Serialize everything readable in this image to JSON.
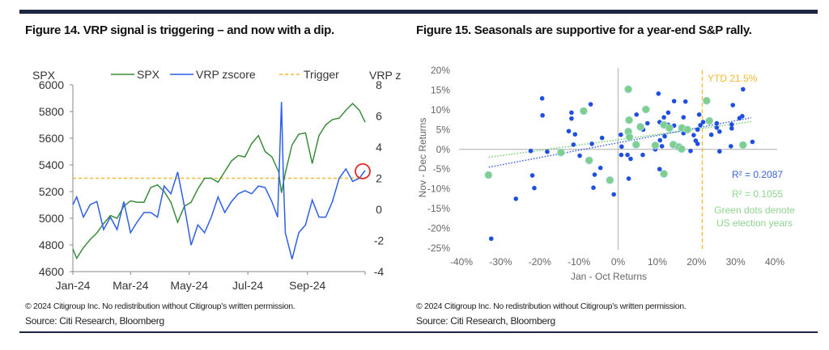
{
  "colors": {
    "navy": "#1c2541",
    "spx": "#3b8c3b",
    "vrp": "#2f5fe8",
    "trigger": "#f5b932",
    "circle": "#e8262a",
    "scatter_blue": "#1f4fe0",
    "scatter_green": "#7fcf8c",
    "green_text": "#8fd48f",
    "blue_text": "#3a62e0",
    "axis": "#bbbbbb"
  },
  "left": {
    "title": "Figure 14. VRP signal is triggering – and now with a dip.",
    "copyright": "© 2024 Citigroup Inc. No redistribution without Citigroup’s written permission.",
    "source": "Source: Citi Research, Bloomberg"
  },
  "right": {
    "title": "Figure 15. Seasonals are supportive for a year-end S&P rally.",
    "copyright": "© 2024 Citigroup Inc. No redistribution without Citigroup’s written permission.",
    "source": "Source: Citi Research, Bloomberg"
  },
  "chart_data": [
    {
      "type": "line",
      "ylabel": "SPX",
      "y2label": "VRP z",
      "ylim": [
        4600,
        6000
      ],
      "yticks": [
        4600,
        4800,
        5000,
        5200,
        5400,
        5600,
        5800,
        6000
      ],
      "y2lim": [
        -4,
        8
      ],
      "y2ticks": [
        -4,
        -2,
        0,
        2,
        4,
        6,
        8
      ],
      "xlim": [
        "2024-01-01",
        "2024-10-31"
      ],
      "xticks": [
        {
          "label": "Jan-24",
          "date": "2024-01-01"
        },
        {
          "label": "Mar-24",
          "date": "2024-03-01"
        },
        {
          "label": "May-24",
          "date": "2024-05-01"
        },
        {
          "label": "Jul-24",
          "date": "2024-07-01"
        },
        {
          "label": "Sep-24",
          "date": "2024-09-01"
        }
      ],
      "legend": "top",
      "series": [
        {
          "name": "SPX",
          "axis": "left",
          "style": "solid",
          "points": [
            [
              "2024-01-01",
              4770
            ],
            [
              "2024-01-05",
              4700
            ],
            [
              "2024-01-12",
              4780
            ],
            [
              "2024-01-19",
              4840
            ],
            [
              "2024-01-26",
              4890
            ],
            [
              "2024-02-02",
              4960
            ],
            [
              "2024-02-09",
              5020
            ],
            [
              "2024-02-16",
              5000
            ],
            [
              "2024-02-23",
              5090
            ],
            [
              "2024-03-01",
              5130
            ],
            [
              "2024-03-08",
              5120
            ],
            [
              "2024-03-15",
              5120
            ],
            [
              "2024-03-22",
              5230
            ],
            [
              "2024-03-29",
              5250
            ],
            [
              "2024-04-05",
              5200
            ],
            [
              "2024-04-12",
              5120
            ],
            [
              "2024-04-19",
              4970
            ],
            [
              "2024-04-26",
              5090
            ],
            [
              "2024-05-03",
              5120
            ],
            [
              "2024-05-10",
              5220
            ],
            [
              "2024-05-17",
              5300
            ],
            [
              "2024-05-24",
              5300
            ],
            [
              "2024-05-31",
              5270
            ],
            [
              "2024-06-07",
              5350
            ],
            [
              "2024-06-14",
              5430
            ],
            [
              "2024-06-21",
              5470
            ],
            [
              "2024-06-28",
              5460
            ],
            [
              "2024-07-05",
              5560
            ],
            [
              "2024-07-12",
              5620
            ],
            [
              "2024-07-19",
              5500
            ],
            [
              "2024-07-26",
              5460
            ],
            [
              "2024-08-02",
              5350
            ],
            [
              "2024-08-05",
              5190
            ],
            [
              "2024-08-09",
              5340
            ],
            [
              "2024-08-16",
              5550
            ],
            [
              "2024-08-23",
              5630
            ],
            [
              "2024-08-30",
              5640
            ],
            [
              "2024-09-06",
              5410
            ],
            [
              "2024-09-13",
              5620
            ],
            [
              "2024-09-20",
              5700
            ],
            [
              "2024-09-27",
              5740
            ],
            [
              "2024-10-04",
              5750
            ],
            [
              "2024-10-11",
              5810
            ],
            [
              "2024-10-18",
              5860
            ],
            [
              "2024-10-25",
              5810
            ],
            [
              "2024-10-31",
              5720
            ]
          ]
        },
        {
          "name": "VRP zscore",
          "axis": "right",
          "style": "solid",
          "points": [
            [
              "2024-01-01",
              0.3
            ],
            [
              "2024-01-05",
              0.8
            ],
            [
              "2024-01-12",
              -0.5
            ],
            [
              "2024-01-19",
              0.3
            ],
            [
              "2024-01-26",
              0.5
            ],
            [
              "2024-02-02",
              -1.3
            ],
            [
              "2024-02-09",
              -0.5
            ],
            [
              "2024-02-16",
              -1.3
            ],
            [
              "2024-02-23",
              0.5
            ],
            [
              "2024-03-01",
              -1.5
            ],
            [
              "2024-03-08",
              -0.8
            ],
            [
              "2024-03-15",
              -0.2
            ],
            [
              "2024-03-22",
              -0.2
            ],
            [
              "2024-03-29",
              -0.5
            ],
            [
              "2024-04-05",
              1.5
            ],
            [
              "2024-04-12",
              1.0
            ],
            [
              "2024-04-19",
              2.4
            ],
            [
              "2024-04-26",
              0.2
            ],
            [
              "2024-05-03",
              -2.3
            ],
            [
              "2024-05-10",
              -1.0
            ],
            [
              "2024-05-17",
              -1.5
            ],
            [
              "2024-05-24",
              -0.5
            ],
            [
              "2024-05-31",
              0.8
            ],
            [
              "2024-06-07",
              -0.2
            ],
            [
              "2024-06-14",
              0.5
            ],
            [
              "2024-06-21",
              1.0
            ],
            [
              "2024-06-28",
              1.2
            ],
            [
              "2024-07-05",
              1.0
            ],
            [
              "2024-07-12",
              1.5
            ],
            [
              "2024-07-19",
              1.4
            ],
            [
              "2024-07-26",
              0.5
            ],
            [
              "2024-08-01",
              -0.5
            ],
            [
              "2024-08-05",
              6.9
            ],
            [
              "2024-08-07",
              2.0
            ],
            [
              "2024-08-09",
              -1.5
            ],
            [
              "2024-08-16",
              -3.2
            ],
            [
              "2024-08-23",
              -1.5
            ],
            [
              "2024-08-30",
              -1.0
            ],
            [
              "2024-09-06",
              0.6
            ],
            [
              "2024-09-13",
              -0.5
            ],
            [
              "2024-09-20",
              -0.5
            ],
            [
              "2024-09-27",
              0.5
            ],
            [
              "2024-10-04",
              2.0
            ],
            [
              "2024-10-11",
              2.6
            ],
            [
              "2024-10-18",
              1.8
            ],
            [
              "2024-10-25",
              2.0
            ],
            [
              "2024-10-31",
              2.5
            ]
          ]
        },
        {
          "name": "Trigger",
          "axis": "right",
          "style": "dashed",
          "value": 2
        }
      ],
      "annotation": "circle at latest VRP zscore"
    },
    {
      "type": "scatter",
      "xlabel": "Jan - Oct Returns",
      "ylabel": "Nov - Dec Returns",
      "xlim": [
        -40,
        40
      ],
      "xticks": [
        -40,
        -30,
        -20,
        -10,
        0,
        10,
        20,
        30,
        40
      ],
      "ylim": [
        -25,
        20
      ],
      "yticks": [
        -25,
        -20,
        -15,
        -10,
        -5,
        0,
        5,
        10,
        15,
        20
      ],
      "unit": "%",
      "ytd_line": {
        "value": 21.5,
        "label": "YTD 21.5%"
      },
      "r2_blue": "R² = 0.2087",
      "r2_green": "R² = 0.1055",
      "note": [
        "Green dots denote",
        "US election years"
      ],
      "trend_blue": [
        [
          -33,
          -4.5
        ],
        [
          34,
          8
        ]
      ],
      "trend_green": [
        [
          -33,
          -2
        ],
        [
          34,
          7
        ]
      ],
      "series": [
        {
          "group": "all years",
          "color": "blue",
          "points": [
            [
              -32.4,
              -22.6
            ],
            [
              -19.4,
              12.9
            ],
            [
              -19.3,
              8.6
            ],
            [
              -11.9,
              9.3
            ],
            [
              -11.9,
              7.8
            ],
            [
              -7.0,
              11.4
            ],
            [
              -12.6,
              4.6
            ],
            [
              -11.0,
              3.8
            ],
            [
              -11.4,
              1.2
            ],
            [
              -22.3,
              -0.4
            ],
            [
              -18.1,
              -0.6
            ],
            [
              -21.9,
              -6.6
            ],
            [
              -21.4,
              -9.8
            ],
            [
              -26.1,
              -12.5
            ],
            [
              -9.8,
              -1.6
            ],
            [
              -6.7,
              1.4
            ],
            [
              -4.1,
              2.9
            ],
            [
              -4.5,
              -4.7
            ],
            [
              -6.0,
              -6.4
            ],
            [
              -6.3,
              -9.7
            ],
            [
              -1.1,
              -11.4
            ],
            [
              0.7,
              3.7
            ],
            [
              0.9,
              0.7
            ],
            [
              0.8,
              -1.4
            ],
            [
              2.4,
              -1.4
            ],
            [
              3.2,
              -2.4
            ],
            [
              2.7,
              -7.4
            ],
            [
              4.7,
              8.8
            ],
            [
              6.4,
              5.0
            ],
            [
              6.3,
              -1.4
            ],
            [
              7.5,
              6.6
            ],
            [
              4.6,
              0.9
            ],
            [
              9.5,
              0
            ],
            [
              10.3,
              14.1
            ],
            [
              10.6,
              6.9
            ],
            [
              11.7,
              8.1
            ],
            [
              12.8,
              9.3
            ],
            [
              10.7,
              2.3
            ],
            [
              11.2,
              0.8
            ],
            [
              11.9,
              3.3
            ],
            [
              10.6,
              -5.0
            ],
            [
              14.3,
              12.2
            ],
            [
              14.3,
              6.0
            ],
            [
              12.8,
              6.2
            ],
            [
              17.2,
              12.1
            ],
            [
              16.7,
              8.1
            ],
            [
              16.7,
              4.1
            ],
            [
              18.5,
              -0.4
            ],
            [
              19.3,
              3.6
            ],
            [
              19.8,
              2.2
            ],
            [
              20.3,
              1.4
            ],
            [
              20.7,
              8.8
            ],
            [
              20.3,
              5.0
            ],
            [
              21.0,
              6.1
            ],
            [
              21.7,
              6.9
            ],
            [
              23.8,
              3.7
            ],
            [
              25.2,
              6.6
            ],
            [
              25.2,
              5.5
            ],
            [
              25.9,
              4.5
            ],
            [
              25.9,
              -0.5
            ],
            [
              28.8,
              0.8
            ],
            [
              29.0,
              6.3
            ],
            [
              29.0,
              5.3
            ],
            [
              29.3,
              11.2
            ],
            [
              31.0,
              7.9
            ],
            [
              31.7,
              8.4
            ],
            [
              31.9,
              15.2
            ],
            [
              34.3,
              1.9
            ]
          ]
        },
        {
          "group": "US election years",
          "color": "green",
          "points": [
            [
              -33.1,
              -6.5
            ],
            [
              -14.6,
              -0.8
            ],
            [
              -8.8,
              9.7
            ],
            [
              -7.4,
              -2.8
            ],
            [
              -2.1,
              -7.8
            ],
            [
              2.6,
              15.2
            ],
            [
              2.8,
              7.4
            ],
            [
              2.6,
              4.5
            ],
            [
              2.9,
              3.1
            ],
            [
              4.6,
              1.2
            ],
            [
              5.7,
              5.7
            ],
            [
              7.1,
              10.1
            ],
            [
              9.5,
              1.0
            ],
            [
              11.7,
              6.2
            ],
            [
              13.1,
              5.4
            ],
            [
              11.7,
              -6.2
            ],
            [
              14.1,
              1.2
            ],
            [
              15.5,
              0.6
            ],
            [
              16.2,
              0.1
            ],
            [
              16.3,
              5.4
            ],
            [
              17.7,
              5.0
            ],
            [
              22.6,
              12.3
            ],
            [
              23.3,
              7.2
            ],
            [
              31.9,
              1.1
            ]
          ]
        }
      ]
    }
  ]
}
